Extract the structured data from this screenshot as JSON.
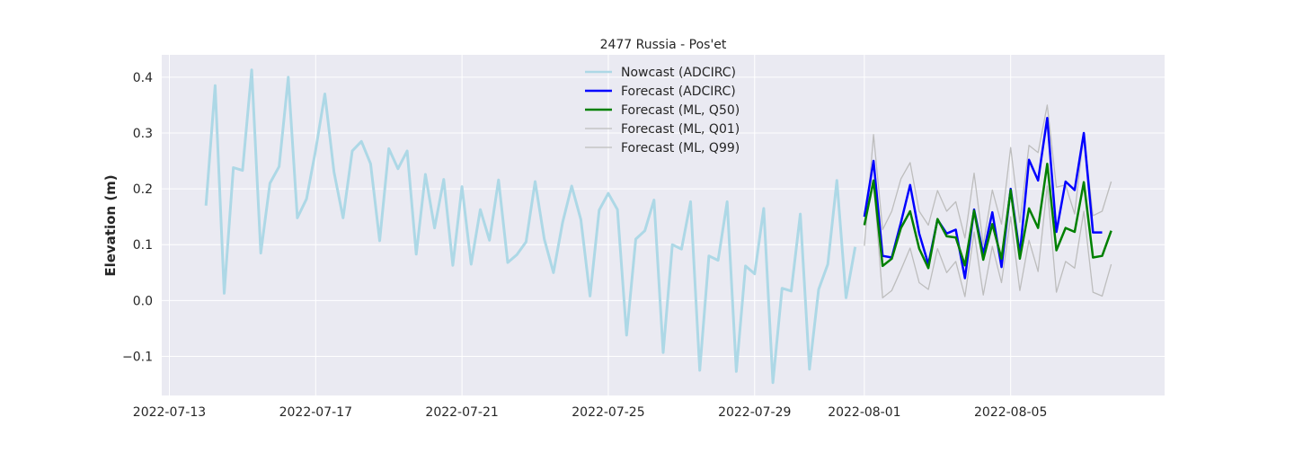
{
  "chart_data": {
    "type": "line",
    "title": "2477 Russia - Pos'et",
    "xlabel": "",
    "ylabel": "Elevation (m)",
    "x_type": "date",
    "xlim": [
      "2022-07-12T19:00",
      "2022-08-09T05:00"
    ],
    "ylim": [
      -0.17,
      0.44
    ],
    "x_ticks": [
      "2022-07-13",
      "2022-07-17",
      "2022-07-21",
      "2022-07-25",
      "2022-07-29",
      "2022-08-01",
      "2022-08-05"
    ],
    "y_ticks": [
      -0.1,
      0.0,
      0.1,
      0.2,
      0.3,
      0.4
    ],
    "y_tick_labels": [
      "−0.1",
      "0.0",
      "0.1",
      "0.2",
      "0.3",
      "0.4"
    ],
    "grid": true,
    "legend_position": "top-center",
    "series": [
      {
        "name": "Nowcast (ADCIRC)",
        "color": "#add8e6",
        "start": "2022-07-14T00:00",
        "step_hours": 6,
        "values": [
          0.17,
          0.385,
          0.013,
          0.238,
          0.233,
          0.413,
          0.085,
          0.21,
          0.24,
          0.4,
          0.148,
          0.182,
          0.27,
          0.37,
          0.23,
          0.148,
          0.268,
          0.285,
          0.245,
          0.107,
          0.272,
          0.236,
          0.268,
          0.083,
          0.226,
          0.13,
          0.217,
          0.063,
          0.204,
          0.065,
          0.163,
          0.108,
          0.216,
          0.068,
          0.082,
          0.105,
          0.213,
          0.11,
          0.05,
          0.14,
          0.205,
          0.145,
          0.008,
          0.162,
          0.192,
          0.163,
          -0.062,
          0.11,
          0.125,
          0.18,
          -0.093,
          0.1,
          0.092,
          0.177,
          -0.125,
          0.08,
          0.072,
          0.177,
          -0.127,
          0.062,
          0.048,
          0.165,
          -0.147,
          0.022,
          0.017,
          0.155,
          -0.123,
          0.02,
          0.065,
          0.215,
          0.005,
          0.096
        ]
      },
      {
        "name": "Forecast (ADCIRC)",
        "color": "#0000ff",
        "start": "2022-08-01T00:00",
        "step_hours": 6,
        "values": [
          0.15,
          0.25,
          0.08,
          0.077,
          0.14,
          0.207,
          0.12,
          0.065,
          0.145,
          0.12,
          0.127,
          0.04,
          0.163,
          0.083,
          0.158,
          0.06,
          0.2,
          0.083,
          0.252,
          0.215,
          0.327,
          0.123,
          0.213,
          0.198,
          0.3,
          0.122,
          0.122
        ]
      },
      {
        "name": "Forecast (ML, Q50)",
        "color": "#008000",
        "start": "2022-08-01T00:00",
        "step_hours": 6,
        "values": [
          0.135,
          0.215,
          0.062,
          0.075,
          0.13,
          0.16,
          0.093,
          0.058,
          0.146,
          0.115,
          0.113,
          0.063,
          0.161,
          0.073,
          0.137,
          0.075,
          0.198,
          0.075,
          0.165,
          0.13,
          0.245,
          0.09,
          0.13,
          0.123,
          0.212,
          0.077,
          0.08,
          0.125
        ]
      },
      {
        "name": "Forecast (ML, Q01)",
        "color": "#bdbdbd",
        "start": "2022-08-01T00:00",
        "step_hours": 6,
        "values": [
          0.135,
          0.215,
          0.005,
          0.018,
          0.055,
          0.094,
          0.032,
          0.02,
          0.093,
          0.05,
          0.07,
          0.007,
          0.123,
          0.01,
          0.097,
          0.032,
          0.15,
          0.018,
          0.108,
          0.052,
          0.205,
          0.015,
          0.07,
          0.058,
          0.16,
          0.015,
          0.008,
          0.065
        ]
      },
      {
        "name": "Forecast (ML, Q99)",
        "color": "#bdbdbd",
        "start": "2022-08-01T00:00",
        "step_hours": 6,
        "values": [
          0.098,
          0.297,
          0.127,
          0.16,
          0.218,
          0.247,
          0.16,
          0.135,
          0.197,
          0.16,
          0.177,
          0.112,
          0.228,
          0.1,
          0.198,
          0.137,
          0.274,
          0.14,
          0.278,
          0.265,
          0.35,
          0.203,
          0.207,
          0.155,
          0.3,
          0.152,
          0.16,
          0.213
        ]
      }
    ]
  }
}
